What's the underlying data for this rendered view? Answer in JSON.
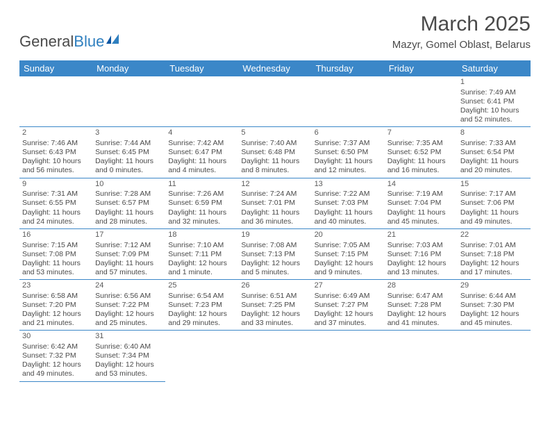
{
  "logo": {
    "part1": "General",
    "part2": "Blue"
  },
  "header": {
    "month": "March 2025",
    "location": "Mazyr, Gomel Oblast, Belarus"
  },
  "colors": {
    "headerBg": "#3b87c8",
    "headerText": "#ffffff",
    "border": "#3b87c8",
    "text": "#4a4a4a"
  },
  "days": [
    "Sunday",
    "Monday",
    "Tuesday",
    "Wednesday",
    "Thursday",
    "Friday",
    "Saturday"
  ],
  "weeks": [
    [
      null,
      null,
      null,
      null,
      null,
      null,
      {
        "n": "1",
        "sr": "Sunrise: 7:49 AM",
        "ss": "Sunset: 6:41 PM",
        "dl": "Daylight: 10 hours and 52 minutes."
      }
    ],
    [
      {
        "n": "2",
        "sr": "Sunrise: 7:46 AM",
        "ss": "Sunset: 6:43 PM",
        "dl": "Daylight: 10 hours and 56 minutes."
      },
      {
        "n": "3",
        "sr": "Sunrise: 7:44 AM",
        "ss": "Sunset: 6:45 PM",
        "dl": "Daylight: 11 hours and 0 minutes."
      },
      {
        "n": "4",
        "sr": "Sunrise: 7:42 AM",
        "ss": "Sunset: 6:47 PM",
        "dl": "Daylight: 11 hours and 4 minutes."
      },
      {
        "n": "5",
        "sr": "Sunrise: 7:40 AM",
        "ss": "Sunset: 6:48 PM",
        "dl": "Daylight: 11 hours and 8 minutes."
      },
      {
        "n": "6",
        "sr": "Sunrise: 7:37 AM",
        "ss": "Sunset: 6:50 PM",
        "dl": "Daylight: 11 hours and 12 minutes."
      },
      {
        "n": "7",
        "sr": "Sunrise: 7:35 AM",
        "ss": "Sunset: 6:52 PM",
        "dl": "Daylight: 11 hours and 16 minutes."
      },
      {
        "n": "8",
        "sr": "Sunrise: 7:33 AM",
        "ss": "Sunset: 6:54 PM",
        "dl": "Daylight: 11 hours and 20 minutes."
      }
    ],
    [
      {
        "n": "9",
        "sr": "Sunrise: 7:31 AM",
        "ss": "Sunset: 6:55 PM",
        "dl": "Daylight: 11 hours and 24 minutes."
      },
      {
        "n": "10",
        "sr": "Sunrise: 7:28 AM",
        "ss": "Sunset: 6:57 PM",
        "dl": "Daylight: 11 hours and 28 minutes."
      },
      {
        "n": "11",
        "sr": "Sunrise: 7:26 AM",
        "ss": "Sunset: 6:59 PM",
        "dl": "Daylight: 11 hours and 32 minutes."
      },
      {
        "n": "12",
        "sr": "Sunrise: 7:24 AM",
        "ss": "Sunset: 7:01 PM",
        "dl": "Daylight: 11 hours and 36 minutes."
      },
      {
        "n": "13",
        "sr": "Sunrise: 7:22 AM",
        "ss": "Sunset: 7:03 PM",
        "dl": "Daylight: 11 hours and 40 minutes."
      },
      {
        "n": "14",
        "sr": "Sunrise: 7:19 AM",
        "ss": "Sunset: 7:04 PM",
        "dl": "Daylight: 11 hours and 45 minutes."
      },
      {
        "n": "15",
        "sr": "Sunrise: 7:17 AM",
        "ss": "Sunset: 7:06 PM",
        "dl": "Daylight: 11 hours and 49 minutes."
      }
    ],
    [
      {
        "n": "16",
        "sr": "Sunrise: 7:15 AM",
        "ss": "Sunset: 7:08 PM",
        "dl": "Daylight: 11 hours and 53 minutes."
      },
      {
        "n": "17",
        "sr": "Sunrise: 7:12 AM",
        "ss": "Sunset: 7:09 PM",
        "dl": "Daylight: 11 hours and 57 minutes."
      },
      {
        "n": "18",
        "sr": "Sunrise: 7:10 AM",
        "ss": "Sunset: 7:11 PM",
        "dl": "Daylight: 12 hours and 1 minute."
      },
      {
        "n": "19",
        "sr": "Sunrise: 7:08 AM",
        "ss": "Sunset: 7:13 PM",
        "dl": "Daylight: 12 hours and 5 minutes."
      },
      {
        "n": "20",
        "sr": "Sunrise: 7:05 AM",
        "ss": "Sunset: 7:15 PM",
        "dl": "Daylight: 12 hours and 9 minutes."
      },
      {
        "n": "21",
        "sr": "Sunrise: 7:03 AM",
        "ss": "Sunset: 7:16 PM",
        "dl": "Daylight: 12 hours and 13 minutes."
      },
      {
        "n": "22",
        "sr": "Sunrise: 7:01 AM",
        "ss": "Sunset: 7:18 PM",
        "dl": "Daylight: 12 hours and 17 minutes."
      }
    ],
    [
      {
        "n": "23",
        "sr": "Sunrise: 6:58 AM",
        "ss": "Sunset: 7:20 PM",
        "dl": "Daylight: 12 hours and 21 minutes."
      },
      {
        "n": "24",
        "sr": "Sunrise: 6:56 AM",
        "ss": "Sunset: 7:22 PM",
        "dl": "Daylight: 12 hours and 25 minutes."
      },
      {
        "n": "25",
        "sr": "Sunrise: 6:54 AM",
        "ss": "Sunset: 7:23 PM",
        "dl": "Daylight: 12 hours and 29 minutes."
      },
      {
        "n": "26",
        "sr": "Sunrise: 6:51 AM",
        "ss": "Sunset: 7:25 PM",
        "dl": "Daylight: 12 hours and 33 minutes."
      },
      {
        "n": "27",
        "sr": "Sunrise: 6:49 AM",
        "ss": "Sunset: 7:27 PM",
        "dl": "Daylight: 12 hours and 37 minutes."
      },
      {
        "n": "28",
        "sr": "Sunrise: 6:47 AM",
        "ss": "Sunset: 7:28 PM",
        "dl": "Daylight: 12 hours and 41 minutes."
      },
      {
        "n": "29",
        "sr": "Sunrise: 6:44 AM",
        "ss": "Sunset: 7:30 PM",
        "dl": "Daylight: 12 hours and 45 minutes."
      }
    ],
    [
      {
        "n": "30",
        "sr": "Sunrise: 6:42 AM",
        "ss": "Sunset: 7:32 PM",
        "dl": "Daylight: 12 hours and 49 minutes."
      },
      {
        "n": "31",
        "sr": "Sunrise: 6:40 AM",
        "ss": "Sunset: 7:34 PM",
        "dl": "Daylight: 12 hours and 53 minutes."
      },
      null,
      null,
      null,
      null,
      null
    ]
  ]
}
